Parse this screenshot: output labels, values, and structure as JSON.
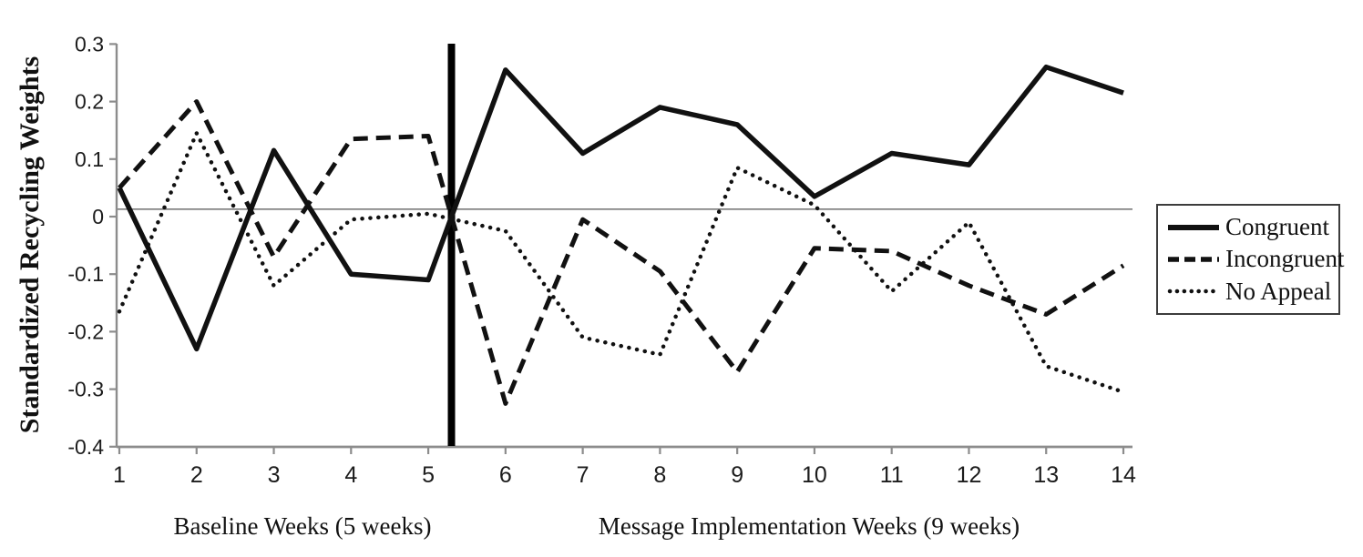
{
  "chart_data": {
    "type": "line",
    "title": "",
    "ylabel": "Standardized Recycling Weights",
    "xlabel": "",
    "x_section_labels": [
      "Baseline Weeks (5 weeks)",
      "Message Implementation Weeks (9 weeks)"
    ],
    "x": [
      1,
      2,
      3,
      4,
      5,
      6,
      7,
      8,
      9,
      10,
      11,
      12,
      13,
      14
    ],
    "xlim": [
      1,
      14
    ],
    "ylim": [
      -0.4,
      0.3
    ],
    "yticks": [
      0.3,
      0.2,
      0.1,
      0,
      -0.1,
      -0.2,
      -0.3,
      -0.4
    ],
    "ytick_labels": [
      "0.3",
      "0.2",
      "0.1",
      "0",
      "-0.1",
      "-0.2",
      "-0.3",
      "-0.4"
    ],
    "xtick_labels": [
      "1",
      "2",
      "3",
      "4",
      "5",
      "6",
      "7",
      "8",
      "9",
      "10",
      "11",
      "12",
      "13",
      "14"
    ],
    "grid": false,
    "series": [
      {
        "name": "Congruent",
        "style": "solid",
        "values": [
          0.05,
          -0.23,
          0.115,
          -0.1,
          -0.11,
          0.255,
          0.11,
          0.19,
          0.16,
          0.035,
          0.11,
          0.09,
          0.26,
          0.215
        ]
      },
      {
        "name": "Incongruent",
        "style": "dashed",
        "values": [
          0.05,
          0.2,
          -0.07,
          0.135,
          0.14,
          -0.325,
          -0.005,
          -0.095,
          -0.27,
          -0.055,
          -0.06,
          -0.12,
          -0.17,
          -0.085
        ]
      },
      {
        "name": "No Appeal",
        "style": "dotted",
        "values": [
          -0.165,
          0.145,
          -0.12,
          -0.005,
          0.005,
          -0.025,
          -0.21,
          -0.24,
          0.085,
          0.02,
          -0.13,
          -0.01,
          -0.26,
          -0.305
        ]
      }
    ],
    "reference_line_y": 0.013,
    "phase_divider_x": 5.3,
    "legend": {
      "position": "right-outside",
      "entries": [
        {
          "label": "Congruent",
          "style": "solid"
        },
        {
          "label": "Incongruent",
          "style": "dashed"
        },
        {
          "label": "No Appeal",
          "style": "dotted"
        }
      ]
    },
    "colors": {
      "series_line": "#111111",
      "axis": "#8c8c8c",
      "reference_line": "#7a7a7a",
      "phase_divider": "#000000",
      "text": "#111111"
    }
  }
}
